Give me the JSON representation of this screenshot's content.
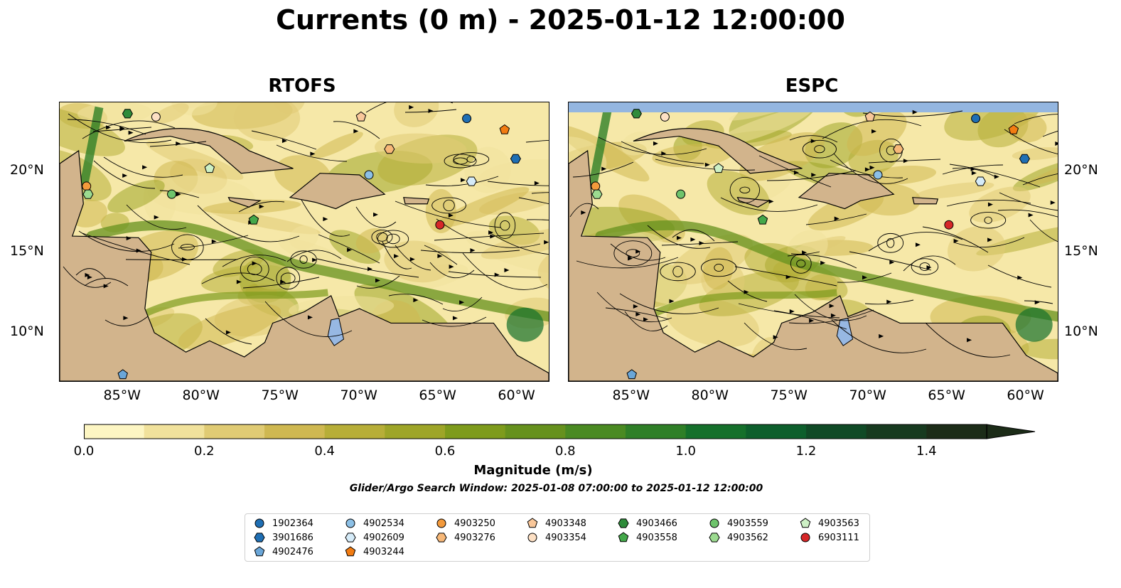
{
  "title": "Currents (0 m) - 2025-01-12 12:00:00",
  "panels": [
    {
      "id": "left",
      "title": "RTOFS"
    },
    {
      "id": "right",
      "title": "ESPC"
    }
  ],
  "axes": {
    "lon_ticks": [
      "85°W",
      "80°W",
      "75°W",
      "70°W",
      "65°W",
      "60°W"
    ],
    "lat_ticks": [
      "20°N",
      "15°N",
      "10°N"
    ]
  },
  "colorbar": {
    "title": "Magnitude (m/s)",
    "ticks": [
      "0.0",
      "0.2",
      "0.4",
      "0.6",
      "0.8",
      "1.0",
      "1.2",
      "1.4"
    ],
    "colors": [
      "#fdf6c3",
      "#f1e29c",
      "#e0cb74",
      "#cfb851",
      "#b7ae38",
      "#9ea528",
      "#7e9b1c",
      "#66911d",
      "#4a8a22",
      "#2f7f27",
      "#15702b",
      "#0d5f2c",
      "#104a26",
      "#173a1f",
      "#1c2c18"
    ],
    "extend": "max"
  },
  "search_window": "Glider/Argo Search Window: 2025-01-08 07:00:00 to 2025-01-12 12:00:00",
  "legend": [
    {
      "id": "1902364",
      "color": "#1f6fb4",
      "marker": "circle"
    },
    {
      "id": "3901686",
      "color": "#1f6fb4",
      "marker": "hexagon"
    },
    {
      "id": "4902476",
      "color": "#6aa6d8",
      "marker": "pentagon"
    },
    {
      "id": "4902534",
      "color": "#8cc0e6",
      "marker": "circle"
    },
    {
      "id": "4902609",
      "color": "#d5ebf8",
      "marker": "hexagon"
    },
    {
      "id": "4903244",
      "color": "#f27c12",
      "marker": "pentagon"
    },
    {
      "id": "4903250",
      "color": "#f39a3c",
      "marker": "circle"
    },
    {
      "id": "4903276",
      "color": "#f7b878",
      "marker": "hexagon"
    },
    {
      "id": "4903348",
      "color": "#f9c79a",
      "marker": "pentagon"
    },
    {
      "id": "4903354",
      "color": "#fde0c4",
      "marker": "circle"
    },
    {
      "id": "4903466",
      "color": "#2e8b3a",
      "marker": "hexagon"
    },
    {
      "id": "4903558",
      "color": "#44a84a",
      "marker": "pentagon"
    },
    {
      "id": "4903559",
      "color": "#6ec46c",
      "marker": "circle"
    },
    {
      "id": "4903562",
      "color": "#9cdb90",
      "marker": "hexagon"
    },
    {
      "id": "4903563",
      "color": "#cdf0c5",
      "marker": "pentagon"
    },
    {
      "id": "6903111",
      "color": "#d62728",
      "marker": "circle"
    }
  ],
  "colors": {
    "land": "#d2b48c",
    "water_fill": "#f6e8a8",
    "lake": "#97b8e3",
    "stream": "#000000"
  }
}
